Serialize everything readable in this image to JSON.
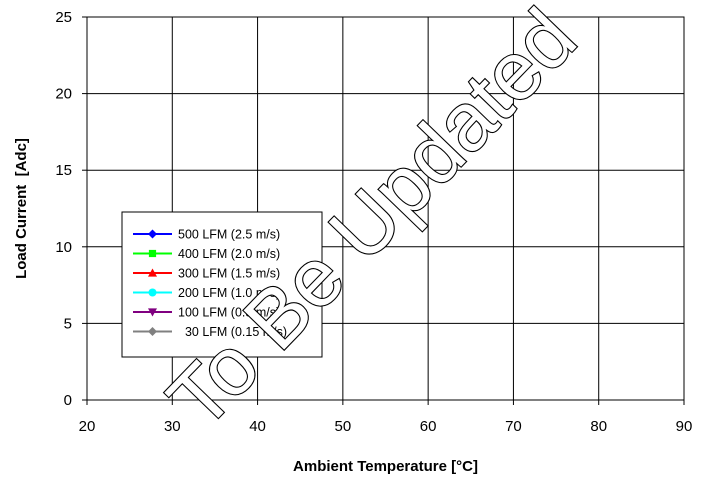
{
  "chart_data": {
    "type": "line",
    "title": "",
    "xlabel": "Ambient Temperature [°C]",
    "ylabel": "Load Current  [Adc]",
    "xlim": [
      20,
      90
    ],
    "ylim": [
      0,
      25
    ],
    "xticks": [
      "20",
      "30",
      "40",
      "50",
      "60",
      "70",
      "80",
      "90"
    ],
    "yticks": [
      "0",
      "5",
      "10",
      "15",
      "20",
      "25"
    ],
    "grid": true,
    "legend_position": "center-left",
    "series": [
      {
        "name": "500 LFM (2.5 m/s)",
        "color": "#0000ff",
        "marker": "diamond",
        "values": []
      },
      {
        "name": "400 LFM (2.0 m/s)",
        "color": "#00ff00",
        "marker": "square",
        "values": []
      },
      {
        "name": "300 LFM (1.5 m/s)",
        "color": "#ff0000",
        "marker": "triangle",
        "values": []
      },
      {
        "name": "200 LFM (1.0 m/s)",
        "color": "#00ffff",
        "marker": "circle",
        "values": []
      },
      {
        "name": "100 LFM (0.5 m/s)",
        "color": "#800080",
        "marker": "triangle-down",
        "values": []
      },
      {
        "name": "  30 LFM (0.15 m/s)",
        "color": "#808080",
        "marker": "diamond",
        "values": []
      }
    ],
    "annotations": [
      "To Be Updated"
    ]
  }
}
